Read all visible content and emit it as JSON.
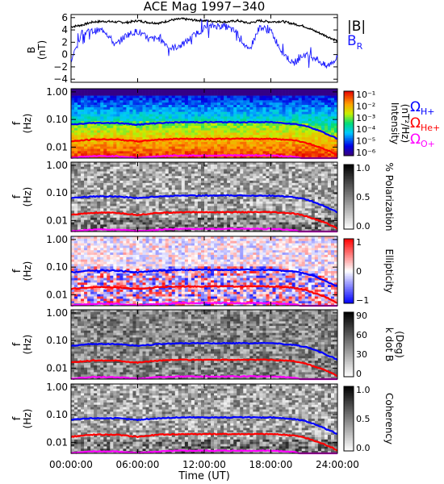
{
  "title": "ACE Mag 1997−340",
  "xlabel": "Time (UT)",
  "x_ticks": [
    "00:00:00",
    "06:00:00",
    "12:00:00",
    "18:00:00",
    "24:00:00"
  ],
  "colors": {
    "total_field": "#000000",
    "radial_field": "#1a1aff",
    "omega_h": "#0000ff",
    "omega_he": "#ff0000",
    "omega_o": "#ff00ff"
  },
  "legend": {
    "b_total": "|B|",
    "b_radial": "B",
    "b_radial_sub": "R",
    "omega": "Ω",
    "omega_h_sub": "H+",
    "omega_he_sub": "He+",
    "omega_o_sub": "O+"
  },
  "panels": {
    "mag": {
      "ylabel_top": "B",
      "ylabel_bottom": "(nT)",
      "y_ticks": [
        "6",
        "4",
        "2",
        "0",
        "−2",
        "−4"
      ]
    },
    "intensity": {
      "ylabel_top": "f",
      "ylabel_bottom": "(Hz)",
      "y_ticks": [
        "1.00",
        "0.10",
        "0.01"
      ],
      "cbar_label": "Intensity",
      "cbar_units": "(nT²/Hz)",
      "cbar_ticks": [
        "10⁻¹",
        "10⁻²",
        "10⁻³",
        "10⁻⁴",
        "10⁻⁵",
        "10⁻⁶"
      ]
    },
    "polarization": {
      "ylabel_top": "f",
      "ylabel_bottom": "(Hz)",
      "y_ticks": [
        "1.00",
        "0.10",
        "0.01"
      ],
      "cbar_label": "% Polarization",
      "cbar_ticks": [
        "1.0",
        "0.5",
        "0.0"
      ]
    },
    "ellipticity": {
      "ylabel_top": "f",
      "ylabel_bottom": "(Hz)",
      "y_ticks": [
        "1.00",
        "0.10",
        "0.01"
      ],
      "cbar_label": "Ellipticity",
      "cbar_ticks": [
        "1",
        "0",
        "−1"
      ]
    },
    "kdotb": {
      "ylabel_top": "f",
      "ylabel_bottom": "(Hz)",
      "y_ticks": [
        "1.00",
        "0.10",
        "0.01"
      ],
      "cbar_label": "k dot B",
      "cbar_units": "(Deg)",
      "cbar_ticks": [
        "90",
        "60",
        "30",
        "0"
      ]
    },
    "coherency": {
      "ylabel_top": "f",
      "ylabel_bottom": "(Hz)",
      "y_ticks": [
        "1.00",
        "0.10",
        "0.01"
      ],
      "cbar_label": "Coherency",
      "cbar_ticks": [
        "1.0",
        "0.5",
        "0.0"
      ]
    }
  },
  "chart_data": {
    "type": "line",
    "title": "ACE Mag 1997−340",
    "xlabel": "Time (UT)",
    "xlim": [
      0,
      24
    ],
    "x_units": "hours UT",
    "panels": [
      {
        "name": "B",
        "ylabel": "B (nT)",
        "ylim": [
          -4.5,
          6.5
        ],
        "series": [
          {
            "name": "|B|",
            "x": [
              0,
              1,
              2,
              3,
              4,
              5,
              6,
              7,
              8,
              9,
              10,
              11,
              12,
              13,
              14,
              15,
              16,
              17,
              18,
              19,
              20,
              21,
              22,
              23,
              24
            ],
            "values": [
              4.5,
              4.8,
              5.3,
              5.4,
              5.3,
              5.2,
              5.5,
              5.2,
              5.1,
              5.6,
              5.8,
              5.6,
              5.5,
              5.4,
              5.3,
              5.5,
              5.1,
              5.5,
              5.3,
              5.4,
              5.0,
              4.6,
              3.8,
              3.0,
              2.2
            ]
          },
          {
            "name": "B",
            "x": [
              0,
              1,
              2,
              3,
              4,
              5,
              6,
              7,
              8,
              9,
              10,
              11,
              12,
              13,
              14,
              15,
              16,
              17,
              18,
              19,
              20,
              21,
              22,
              23,
              24
            ],
            "values": [
              -1.0,
              3.5,
              3.8,
              4.0,
              1.5,
              3.2,
              3.8,
              2.5,
              2.6,
              1.0,
              1.5,
              3.0,
              4.3,
              4.7,
              4.5,
              3.5,
              0.5,
              4.5,
              3.8,
              0.5,
              -1.5,
              0.0,
              -0.5,
              -2.0,
              -0.5
            ]
          }
        ]
      },
      {
        "name": "Intensity spectrogram",
        "type": "heatmap",
        "ylabel": "f (Hz)",
        "y_scale": "log",
        "ylim": [
          0.004,
          1.3
        ],
        "colorbar_label": "Intensity (nT²/Hz)",
        "colorbar_range": [
          1e-06,
          0.1
        ],
        "colorbar_scale": "log"
      },
      {
        "name": "Polarization spectrogram",
        "type": "heatmap",
        "ylabel": "f (Hz)",
        "y_scale": "log",
        "colorbar_label": "% Polarization",
        "colorbar_range": [
          0.0,
          1.0
        ]
      },
      {
        "name": "Ellipticity spectrogram",
        "type": "heatmap",
        "ylabel": "f (Hz)",
        "y_scale": "log",
        "colorbar_label": "Ellipticity",
        "colorbar_range": [
          -1,
          1
        ]
      },
      {
        "name": "k dot B spectrogram",
        "type": "heatmap",
        "ylabel": "f (Hz)",
        "y_scale": "log",
        "colorbar_label": "k dot B (Deg)",
        "colorbar_range": [
          0,
          90
        ]
      },
      {
        "name": "Coherency spectrogram",
        "type": "heatmap",
        "ylabel": "f (Hz)",
        "y_scale": "log",
        "colorbar_label": "Coherency",
        "colorbar_range": [
          0.0,
          1.0
        ]
      }
    ],
    "overlay_lines": [
      {
        "name": "ΩH+",
        "x": [
          0,
          2,
          4,
          6,
          8,
          10,
          12,
          14,
          16,
          18,
          20,
          21,
          22,
          23,
          24
        ],
        "values": [
          0.065,
          0.075,
          0.075,
          0.065,
          0.075,
          0.08,
          0.08,
          0.08,
          0.08,
          0.08,
          0.07,
          0.06,
          0.045,
          0.03,
          0.02
        ]
      },
      {
        "name": "ΩHe+",
        "x": [
          0,
          2,
          4,
          6,
          8,
          10,
          12,
          14,
          16,
          18,
          20,
          21,
          22,
          23,
          24
        ],
        "values": [
          0.016,
          0.019,
          0.019,
          0.016,
          0.019,
          0.02,
          0.02,
          0.02,
          0.02,
          0.02,
          0.018,
          0.015,
          0.011,
          0.008,
          0.005
        ]
      },
      {
        "name": "ΩO+",
        "x": [
          0,
          2,
          4,
          6,
          8,
          10,
          12,
          14,
          16,
          18,
          20,
          21,
          22,
          23,
          24
        ],
        "values": [
          0.0041,
          0.0047,
          0.0047,
          0.0041,
          0.0047,
          0.005,
          0.005,
          0.005,
          0.005,
          0.005,
          0.0045,
          0.0038,
          0.0028,
          0.002,
          0.0013
        ]
      }
    ]
  }
}
